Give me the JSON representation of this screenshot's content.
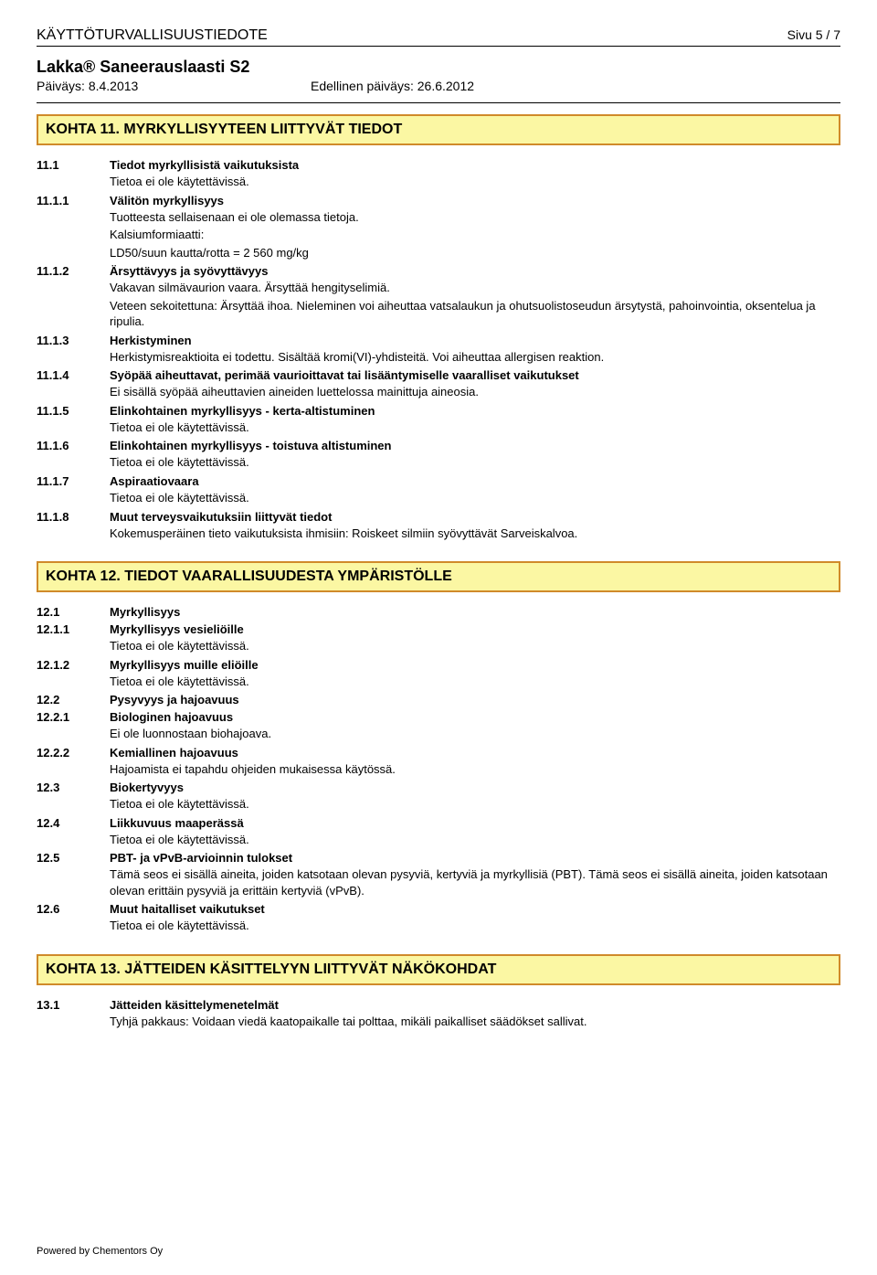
{
  "header": {
    "title": "KÄYTTÖTURVALLISUUSTIEDOTE",
    "page": "Sivu 5 / 7",
    "product": "Lakka® Saneerauslaasti S2",
    "date1_label": "Päiväys: ",
    "date1": "8.4.2013",
    "date2_label": "Edellinen päiväys: ",
    "date2": "26.6.2012"
  },
  "section11": {
    "heading": "KOHTA 11. MYRKYLLISYYTEEN LIITTYVÄT TIEDOT",
    "r1_num": "11.1",
    "r1_title": "Tiedot myrkyllisistä vaikutuksista",
    "r1_text": "Tietoa ei ole käytettävissä.",
    "r2_num": "11.1.1",
    "r2_title": "Välitön myrkyllisyys",
    "r2_text1": "Tuotteesta sellaisenaan ei ole olemassa tietoja.",
    "r2_text2": "Kalsiumformiaatti:",
    "r2_text3": "LD50/suun kautta/rotta = 2 560 mg/kg",
    "r3_num": "11.1.2",
    "r3_title": "Ärsyttävyys ja syövyttävyys",
    "r3_text1": "Vakavan silmävaurion vaara. Ärsyttää hengityselimiä.",
    "r3_text2": "Veteen sekoitettuna: Ärsyttää ihoa. Nieleminen voi aiheuttaa vatsalaukun ja ohutsuolistoseudun ärsytystä, pahoinvointia, oksentelua ja ripulia.",
    "r4_num": "11.1.3",
    "r4_title": "Herkistyminen",
    "r4_text": "Herkistymisreaktioita ei todettu. Sisältää kromi(VI)-yhdisteitä. Voi aiheuttaa allergisen reaktion.",
    "r5_num": "11.1.4",
    "r5_title": "Syöpää aiheuttavat, perimää vaurioittavat tai lisääntymiselle vaaralliset vaikutukset",
    "r5_text": "Ei sisällä syöpää aiheuttavien aineiden luettelossa mainittuja aineosia.",
    "r6_num": "11.1.5",
    "r6_title": "Elinkohtainen myrkyllisyys - kerta-altistuminen",
    "r6_text": "Tietoa ei ole käytettävissä.",
    "r7_num": "11.1.6",
    "r7_title": "Elinkohtainen myrkyllisyys - toistuva altistuminen",
    "r7_text": "Tietoa ei ole käytettävissä.",
    "r8_num": "11.1.7",
    "r8_title": "Aspiraatiovaara",
    "r8_text": "Tietoa ei ole käytettävissä.",
    "r9_num": "11.1.8",
    "r9_title": "Muut terveysvaikutuksiin liittyvät tiedot",
    "r9_text": "Kokemusperäinen tieto vaikutuksista ihmisiin: Roiskeet silmiin syövyttävät Sarveiskalvoa."
  },
  "section12": {
    "heading": "KOHTA 12. TIEDOT VAARALLISUUDESTA YMPÄRISTÖLLE",
    "r1_num": "12.1",
    "r1_title": "Myrkyllisyys",
    "r2_num": "12.1.1",
    "r2_title": "Myrkyllisyys vesieliöille",
    "r2_text": "Tietoa ei ole käytettävissä.",
    "r3_num": "12.1.2",
    "r3_title": "Myrkyllisyys muille eliöille",
    "r3_text": "Tietoa ei ole käytettävissä.",
    "r4_num": "12.2",
    "r4_title": "Pysyvyys ja hajoavuus",
    "r5_num": "12.2.1",
    "r5_title": "Biologinen hajoavuus",
    "r5_text": "Ei ole luonnostaan biohajoava.",
    "r6_num": "12.2.2",
    "r6_title": "Kemiallinen hajoavuus",
    "r6_text": "Hajoamista ei tapahdu ohjeiden mukaisessa käytössä.",
    "r7_num": "12.3",
    "r7_title": "Biokertyvyys",
    "r7_text": "Tietoa ei ole käytettävissä.",
    "r8_num": "12.4",
    "r8_title": "Liikkuvuus maaperässä",
    "r8_text": "Tietoa ei ole käytettävissä.",
    "r9_num": "12.5",
    "r9_title": "PBT- ja vPvB-arvioinnin tulokset",
    "r9_text": "Tämä seos ei sisällä aineita, joiden katsotaan olevan pysyviä, kertyviä ja myrkyllisiä (PBT). Tämä seos ei sisällä aineita, joiden katsotaan olevan erittäin pysyviä ja erittäin kertyviä (vPvB).",
    "r10_num": "12.6",
    "r10_title": "Muut haitalliset vaikutukset",
    "r10_text": "Tietoa ei ole käytettävissä."
  },
  "section13": {
    "heading": "KOHTA 13. JÄTTEIDEN KÄSITTELYYN LIITTYVÄT NÄKÖKOHDAT",
    "r1_num": "13.1",
    "r1_title": "Jätteiden käsittelymenetelmät",
    "r1_text": "Tyhjä pakkaus: Voidaan viedä kaatopaikalle tai polttaa, mikäli paikalliset säädökset sallivat."
  },
  "footer": "Powered by Chementors Oy"
}
